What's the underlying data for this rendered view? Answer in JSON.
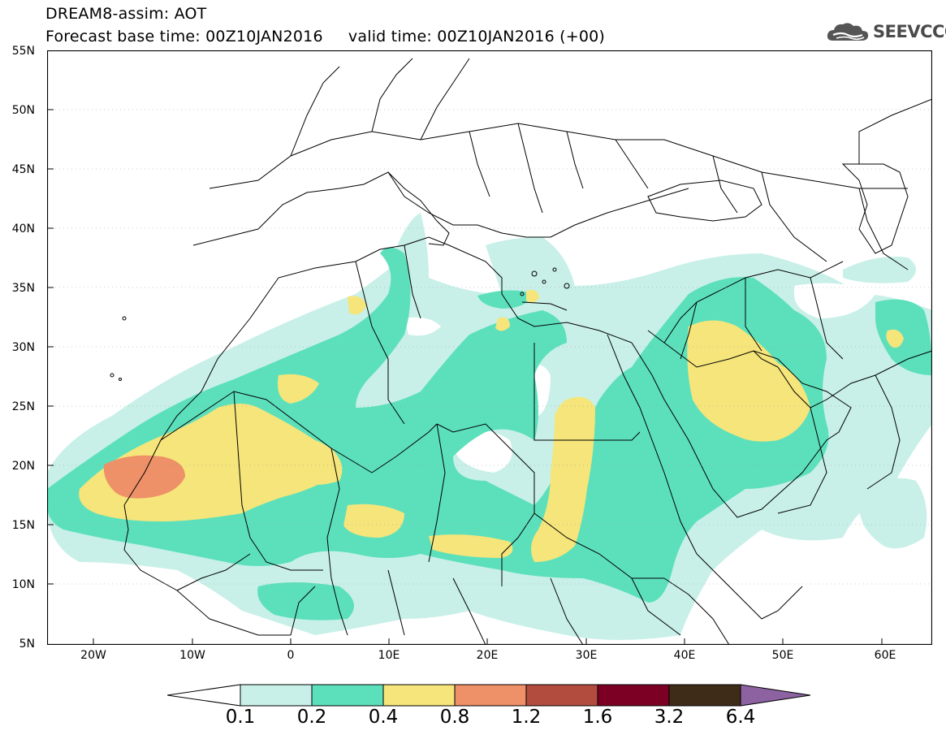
{
  "header": {
    "title": "DREAM8-assim: AOT",
    "subtitle": "Forecast base time: 00Z10JAN2016     valid time: 00Z10JAN2016 (+00)",
    "logo_text": "SEEVCCC"
  },
  "axes": {
    "lat_labels": [
      "55N",
      "50N",
      "45N",
      "40N",
      "35N",
      "30N",
      "25N",
      "20N",
      "15N",
      "10N",
      "5N"
    ],
    "lon_labels": [
      "20W",
      "10W",
      "0",
      "10E",
      "20E",
      "30E",
      "40E",
      "50E",
      "60E"
    ],
    "lat_range": [
      5,
      55
    ],
    "lon_range": [
      -25,
      65
    ]
  },
  "colorbar": {
    "labels": [
      "0.1",
      "0.2",
      "0.4",
      "0.8",
      "1.2",
      "1.6",
      "3.2",
      "6.4"
    ],
    "colors": [
      "#ffffff",
      "#c8f0e8",
      "#5ce0bc",
      "#f5e57a",
      "#ee9068",
      "#b24c3e",
      "#7c0024",
      "#3e2c18",
      "#8c62a0"
    ]
  },
  "icons": {
    "logo": "cloud-icon"
  }
}
